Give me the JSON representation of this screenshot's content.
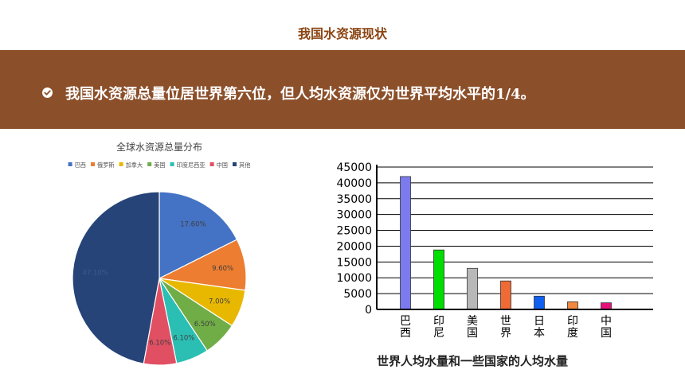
{
  "slide": {
    "title": "我国水资源现状",
    "banner_text": "我国水资源总量位居世界第六位，但人均水资源仅为世界平均水平的1/4。",
    "banner_color": "#8B4F2A",
    "icon": "checkmark-circle-icon"
  },
  "chart_data": [
    {
      "type": "pie",
      "title": "全球水资源总量分布",
      "legend_position": "top",
      "categories": [
        "巴西",
        "俄罗斯",
        "加拿大",
        "美国",
        "印度尼西亚",
        "中国",
        "其他"
      ],
      "values": [
        17.6,
        9.6,
        7.0,
        6.5,
        6.1,
        6.1,
        47.1
      ],
      "labels": [
        "17.60%",
        "9.60%",
        "7.00%",
        "6.50%",
        "6.10%",
        "6.10%",
        "47.10%"
      ],
      "colors": [
        "#4472C4",
        "#ED7D31",
        "#E8B800",
        "#70AD47",
        "#2BBFB3",
        "#E14F63",
        "#264478"
      ]
    },
    {
      "type": "bar",
      "title": "世界人均水量和一些国家的人均水量",
      "categories": [
        "巴西",
        "印尼",
        "美国",
        "世界",
        "日本",
        "印度",
        "中国"
      ],
      "values": [
        42000,
        18800,
        13000,
        9000,
        4200,
        2400,
        2100
      ],
      "colors": [
        "#7B7BEE",
        "#00DD00",
        "#B8B8B8",
        "#F06A35",
        "#1060F0",
        "#F08840",
        "#E8107A"
      ],
      "ylim": [
        0,
        45000
      ],
      "yticks": [
        "0",
        "5000",
        "10000",
        "15000",
        "20000",
        "25000",
        "30000",
        "35000",
        "40000",
        "45000"
      ],
      "grid": true
    }
  ]
}
